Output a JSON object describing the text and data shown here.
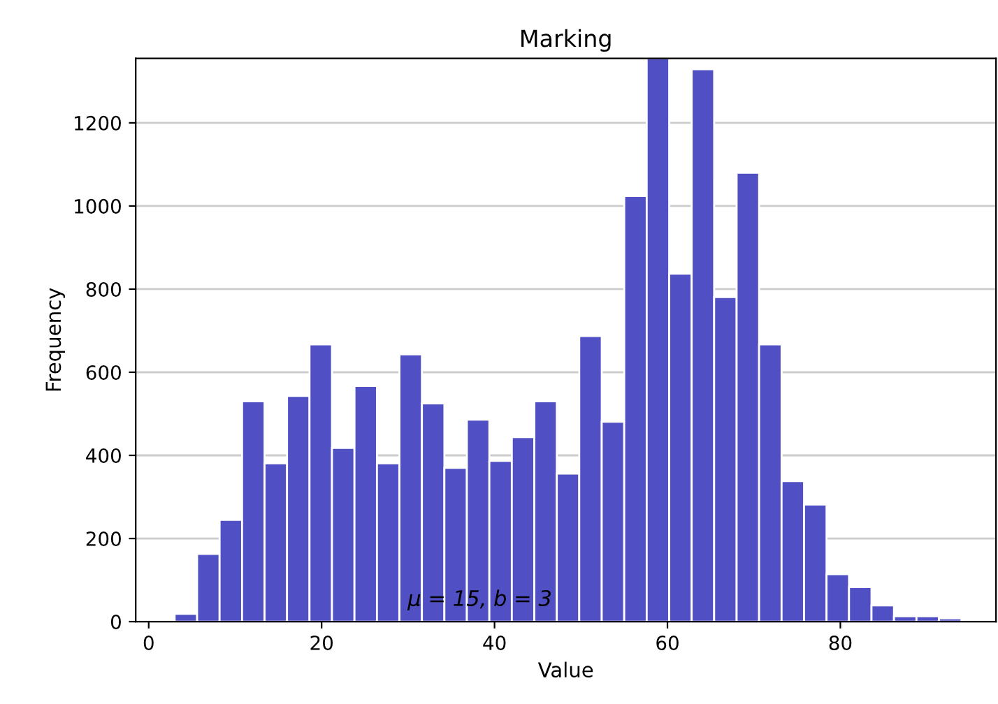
{
  "chart_data": {
    "type": "histogram",
    "title": "Marking",
    "xlabel": "Value",
    "ylabel": "Frequency",
    "bins": [
      3.0,
      5.6,
      8.2,
      10.8,
      13.4,
      16.0,
      18.6,
      21.2,
      23.8,
      26.4,
      29.0,
      31.6,
      34.2,
      36.8,
      39.4,
      42.0,
      44.6,
      47.2,
      49.8,
      52.4,
      55.0,
      57.6,
      60.2,
      62.8,
      65.4,
      68.0,
      70.6,
      73.2,
      75.8,
      78.4,
      81.0,
      83.6,
      86.2,
      88.8,
      91.4,
      94.0
    ],
    "values": [
      19,
      163,
      245,
      530,
      381,
      543,
      667,
      418,
      567,
      381,
      643,
      525,
      370,
      486,
      387,
      444,
      530,
      356,
      687,
      481,
      1024,
      1355,
      837,
      1329,
      781,
      1080,
      667,
      338,
      282,
      114,
      83,
      39,
      13,
      13,
      8
    ],
    "color": "#5050c4",
    "xlim": [
      -1.5,
      98
    ],
    "ylim": [
      0,
      1355
    ],
    "xticks": [
      0,
      20,
      40,
      60,
      80
    ],
    "yticks": [
      0,
      200,
      400,
      600,
      800,
      1000,
      1200
    ],
    "grid": "y",
    "annotations": [
      "μ = 15, b = 3"
    ]
  }
}
